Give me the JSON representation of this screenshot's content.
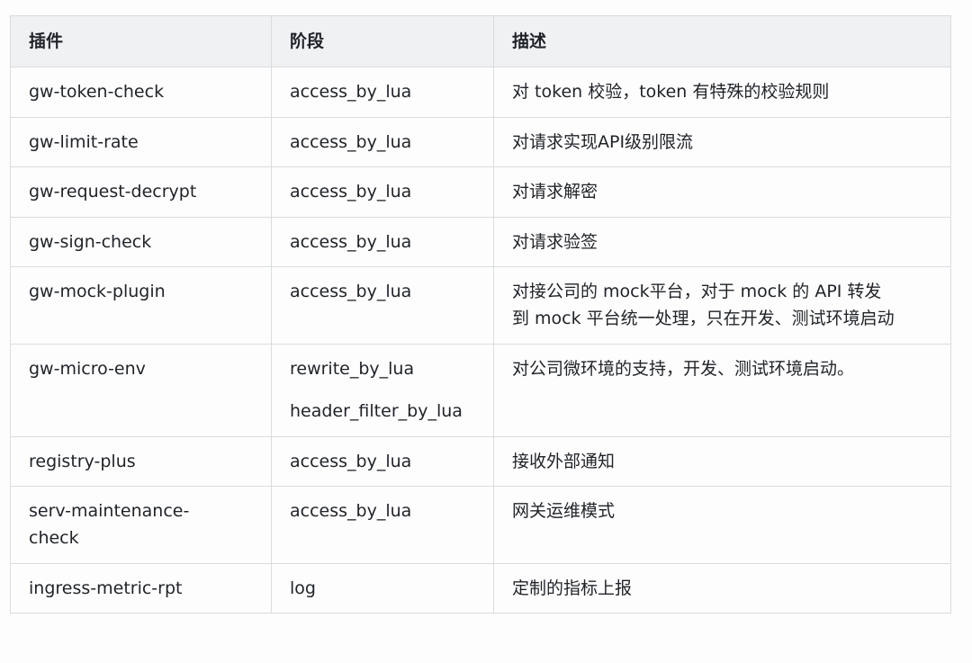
{
  "table": {
    "columns": [
      {
        "label": "插件"
      },
      {
        "label": "阶段"
      },
      {
        "label": "描述"
      }
    ],
    "rows": [
      {
        "plugin": "gw-token-check",
        "phases": [
          "access_by_lua"
        ],
        "description": "对 token 校验，token 有特殊的校验规则"
      },
      {
        "plugin": "gw-limit-rate",
        "phases": [
          "access_by_lua"
        ],
        "description": "对请求实现API级别限流"
      },
      {
        "plugin": "gw-request-decrypt",
        "phases": [
          "access_by_lua"
        ],
        "description": "对请求解密"
      },
      {
        "plugin": "gw-sign-check",
        "phases": [
          "access_by_lua"
        ],
        "description": "对请求验签"
      },
      {
        "plugin": "gw-mock-plugin",
        "phases": [
          "access_by_lua"
        ],
        "description": "对接公司的 mock平台，对于 mock 的 API 转发到 mock 平台统一处理，只在开发、测试环境启动"
      },
      {
        "plugin": "gw-micro-env",
        "phases": [
          "rewrite_by_lua",
          "header_filter_by_lua"
        ],
        "description": "对公司微环境的支持，开发、测试环境启动。"
      },
      {
        "plugin": "registry-plus",
        "phases": [
          "access_by_lua"
        ],
        "description": "接收外部通知"
      },
      {
        "plugin": "serv-maintenance-check",
        "phases": [
          "access_by_lua"
        ],
        "description": "网关运维模式"
      },
      {
        "plugin": "ingress-metric-rpt",
        "phases": [
          "log"
        ],
        "description": "定制的指标上报"
      }
    ]
  },
  "colors": {
    "header_bg": "#eff1f3",
    "row_bg": "#fdfdfd",
    "border": "#d9dcdf",
    "text": "#1f2328"
  }
}
